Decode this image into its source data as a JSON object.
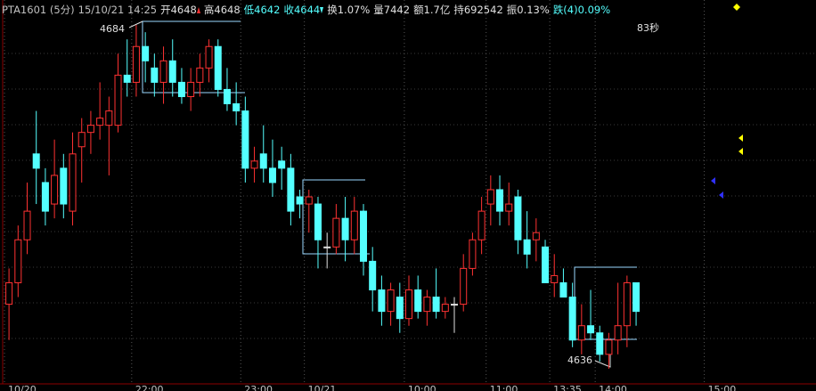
{
  "chart_data": {
    "type": "candlestick",
    "header": [
      {
        "text": "PTA1601 (5分)",
        "color": "#c0c0c0"
      },
      {
        "text": "15/10/21 14:25",
        "color": "#c0c0c0"
      },
      {
        "text": "开4648",
        "color": "#e0e0e0",
        "arrow": "up"
      },
      {
        "text": "高4648",
        "color": "#e0e0e0"
      },
      {
        "text": "低4642",
        "color": "#54ffff"
      },
      {
        "text": "收4644",
        "color": "#54ffff",
        "arrow": "down"
      },
      {
        "text": "换1.07%",
        "color": "#e0e0e0"
      },
      {
        "text": "量7442",
        "color": "#e0e0e0"
      },
      {
        "text": "额1.7亿",
        "color": "#e0e0e0"
      },
      {
        "text": "持692542",
        "color": "#e0e0e0"
      },
      {
        "text": "振0.13%",
        "color": "#e0e0e0"
      },
      {
        "text": "跌(4)0.09%",
        "color": "#54ffff"
      }
    ],
    "annotations": [
      "4684",
      "4636",
      "83秒"
    ],
    "up_color": "#ff3232",
    "down_color": "#54ffff",
    "open": [
      4645,
      4648,
      4654,
      4666,
      4662,
      4659,
      4664,
      4658,
      4667,
      4669,
      4670,
      4670,
      4670,
      4677,
      4676,
      4681,
      4678,
      4676,
      4679,
      4676,
      4674,
      4676,
      4678,
      4681,
      4675,
      4673,
      4672,
      4664,
      4666,
      4664,
      4665,
      4664,
      4660,
      4659,
      4659,
      4653,
      4653,
      4657,
      4654,
      4658,
      4651,
      4647,
      4644,
      4646,
      4643,
      4647,
      4644,
      4646,
      4644,
      4645,
      4645,
      4650,
      4654,
      4659,
      4661,
      4658,
      4660,
      4654,
      4654,
      4653,
      4648,
      4648,
      4646,
      4640,
      4642,
      4641,
      4638,
      4640,
      4642,
      4648
    ],
    "high": [
      4650,
      4656,
      4662,
      4672,
      4664,
      4668,
      4666,
      4669,
      4671,
      4672,
      4676,
      4674,
      4680,
      4682,
      4684,
      4683,
      4680,
      4681,
      4682,
      4678,
      4678,
      4680,
      4682,
      4682,
      4678,
      4676,
      4674,
      4667,
      4670,
      4668,
      4667,
      4666,
      4661,
      4661,
      4660,
      4655,
      4659,
      4660,
      4660,
      4659,
      4653,
      4649,
      4648,
      4648,
      4649,
      4649,
      4647,
      4650,
      4646,
      4646,
      4652,
      4655,
      4660,
      4663,
      4663,
      4662,
      4661,
      4658,
      4657,
      4654,
      4652,
      4650,
      4648,
      4645,
      4647,
      4642,
      4641,
      4648,
      4649,
      4648
    ],
    "low": [
      4640,
      4646,
      4652,
      4659,
      4656,
      4657,
      4657,
      4656,
      4662,
      4666,
      4668,
      4663,
      4669,
      4674,
      4674,
      4676,
      4674,
      4673,
      4674,
      4673,
      4672,
      4674,
      4676,
      4674,
      4672,
      4670,
      4662,
      4662,
      4662,
      4660,
      4661,
      4656,
      4657,
      4655,
      4650,
      4650,
      4652,
      4651,
      4652,
      4649,
      4644,
      4642,
      4642,
      4641,
      4642,
      4643,
      4642,
      4643,
      4643,
      4641,
      4644,
      4649,
      4652,
      4656,
      4656,
      4656,
      4652,
      4650,
      4651,
      4648,
      4646,
      4646,
      4639,
      4638,
      4640,
      4637,
      4636,
      4638,
      4639,
      4642
    ],
    "close": [
      4648,
      4654,
      4658,
      4664,
      4658,
      4663,
      4659,
      4666,
      4669,
      4670,
      4671,
      4672,
      4677,
      4676,
      4681,
      4679,
      4676,
      4679,
      4676,
      4674,
      4676,
      4678,
      4681,
      4675,
      4673,
      4672,
      4664,
      4665,
      4664,
      4662,
      4664,
      4658,
      4659,
      4660,
      4654,
      4653,
      4657,
      4654,
      4658,
      4651,
      4647,
      4644,
      4647,
      4643,
      4647,
      4644,
      4646,
      4644,
      4645,
      4645,
      4650,
      4654,
      4658,
      4661,
      4658,
      4659,
      4654,
      4652,
      4655,
      4648,
      4649,
      4646,
      4640,
      4642,
      4641,
      4638,
      4640,
      4642,
      4648,
      4644
    ],
    "xlim": [
      -0.5,
      88.5
    ],
    "ylim": [
      4634,
      4687
    ],
    "xticks": [
      {
        "value": 0,
        "label": "10/20"
      },
      {
        "value": 14,
        "label": "22:00"
      },
      {
        "value": 26,
        "label": "23:00"
      },
      {
        "value": 33,
        "label": "10/21"
      },
      {
        "value": 44,
        "label": "10:00"
      },
      {
        "value": 53,
        "label": "11:00"
      },
      {
        "value": 60,
        "label": "13:35"
      },
      {
        "value": 65,
        "label": "14:00"
      },
      {
        "value": 77,
        "label": "15:00"
      }
    ]
  }
}
